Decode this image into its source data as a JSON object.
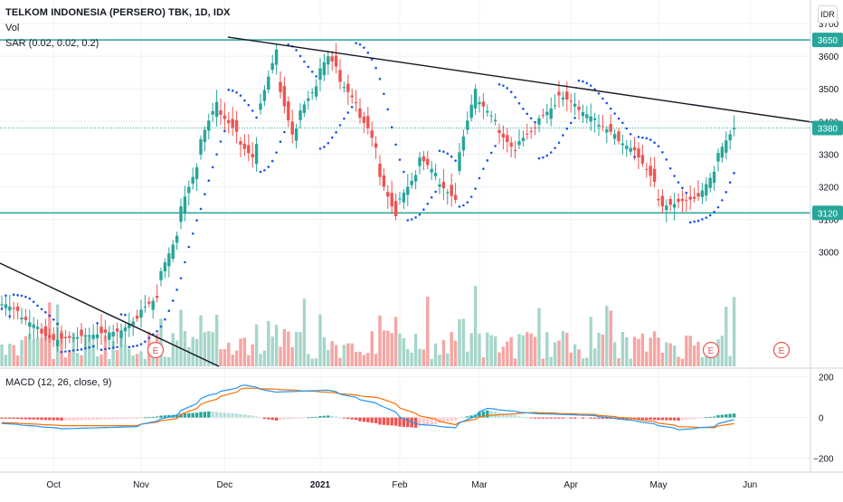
{
  "header": {
    "title": "TELKOM INDONESIA (PERSERO) TBK, 1D, IDX",
    "vol_label": "Vol",
    "sar_label": "SAR (0.02, 0.02, 0.2)",
    "macd_label": "MACD (12, 26, close, 9)",
    "currency": "IDR"
  },
  "colors": {
    "up": "#26a69a",
    "down": "#ef5350",
    "vol_up": "#a5d6c9",
    "vol_down": "#f5a5a3",
    "sar": "#1e53e5",
    "trendline": "#131722",
    "level": "#26a69a",
    "macd_line": "#2196f3",
    "signal_line": "#ff6d00",
    "earnings": "#ef5350"
  },
  "chart_data": [
    {
      "type": "candlestick",
      "title": "TELKOM INDONESIA (PERSERO) TBK, 1D, IDX",
      "x_tick_labels": [
        "Oct",
        "Nov",
        "Dec",
        "2021",
        "Feb",
        "Mar",
        "Apr",
        "May",
        "Jun"
      ],
      "y_tick_labels": [
        3000,
        3100,
        3200,
        3300,
        3400,
        3500,
        3600,
        3700
      ],
      "ylim": [
        2650,
        3750
      ],
      "price_labels": [
        3650,
        3380,
        3120
      ],
      "horizontal_levels": [
        3650,
        3120
      ],
      "last_close": 3380,
      "earnings_markers": [
        "E",
        "E",
        "E"
      ],
      "ohlc_anchors": [
        {
          "date": "2020-09-15",
          "open": 2880,
          "high": 2920,
          "low": 2790,
          "close": 2840
        },
        {
          "date": "2020-10-01",
          "open": 2790,
          "high": 2830,
          "low": 2700,
          "close": 2730
        },
        {
          "date": "2020-10-26",
          "open": 2720,
          "high": 2800,
          "low": 2650,
          "close": 2760
        },
        {
          "date": "2020-11-06",
          "open": 2800,
          "high": 2880,
          "low": 2760,
          "close": 2860
        },
        {
          "date": "2020-11-13",
          "open": 3020,
          "high": 3080,
          "low": 2990,
          "close": 3050
        },
        {
          "date": "2020-11-20",
          "open": 3200,
          "high": 3290,
          "low": 3180,
          "close": 3260
        },
        {
          "date": "2020-11-27",
          "open": 3420,
          "high": 3500,
          "low": 3380,
          "close": 3460
        },
        {
          "date": "2020-12-10",
          "open": 3300,
          "high": 3340,
          "low": 3250,
          "close": 3290
        },
        {
          "date": "2020-12-18",
          "open": 3520,
          "high": 3640,
          "low": 3490,
          "close": 3620
        },
        {
          "date": "2020-12-24",
          "open": 3450,
          "high": 3480,
          "low": 3320,
          "close": 3360
        },
        {
          "date": "2021-01-06",
          "open": 3540,
          "high": 3650,
          "low": 3500,
          "close": 3600
        },
        {
          "date": "2021-01-20",
          "open": 3420,
          "high": 3460,
          "low": 3360,
          "close": 3380
        },
        {
          "date": "2021-01-29",
          "open": 3200,
          "high": 3230,
          "low": 3030,
          "close": 3110
        },
        {
          "date": "2021-02-08",
          "open": 3270,
          "high": 3310,
          "low": 3230,
          "close": 3290
        },
        {
          "date": "2021-02-19",
          "open": 3150,
          "high": 3190,
          "low": 3120,
          "close": 3160
        },
        {
          "date": "2021-02-26",
          "open": 3190,
          "high": 3560,
          "low": 3180,
          "close": 3500
        },
        {
          "date": "2021-03-12",
          "open": 3380,
          "high": 3420,
          "low": 3280,
          "close": 3310
        },
        {
          "date": "2021-03-29",
          "open": 3400,
          "high": 3500,
          "low": 3380,
          "close": 3480
        },
        {
          "date": "2021-04-12",
          "open": 3400,
          "high": 3440,
          "low": 3370,
          "close": 3390
        },
        {
          "date": "2021-04-26",
          "open": 3300,
          "high": 3340,
          "low": 3270,
          "close": 3290
        },
        {
          "date": "2021-05-04",
          "open": 3160,
          "high": 3200,
          "low": 3120,
          "close": 3140
        },
        {
          "date": "2021-05-17",
          "open": 3160,
          "high": 3200,
          "low": 3130,
          "close": 3170
        },
        {
          "date": "2021-05-28",
          "open": 3340,
          "high": 3400,
          "low": 3330,
          "close": 3380
        }
      ]
    },
    {
      "type": "bar",
      "title": "Vol",
      "description_series": [
        "volume"
      ]
    },
    {
      "type": "line",
      "title": "MACD (12, 26, close, 9)",
      "y_tick_labels": [
        200,
        0,
        -200
      ],
      "ylim": [
        -260,
        230
      ],
      "macd_anchors": [
        {
          "date": "2020-09-15",
          "macd": -30,
          "signal": -25
        },
        {
          "date": "2020-10-05",
          "macd": -55,
          "signal": -40
        },
        {
          "date": "2020-10-30",
          "macd": -45,
          "signal": -40
        },
        {
          "date": "2020-11-13",
          "macd": 10,
          "signal": -5
        },
        {
          "date": "2020-11-25",
          "macd": 110,
          "signal": 80
        },
        {
          "date": "2020-12-08",
          "macd": 160,
          "signal": 145
        },
        {
          "date": "2020-12-18",
          "macd": 125,
          "signal": 140
        },
        {
          "date": "2021-01-06",
          "macd": 135,
          "signal": 125
        },
        {
          "date": "2021-01-25",
          "macd": 60,
          "signal": 95
        },
        {
          "date": "2021-02-05",
          "macd": -30,
          "signal": 20
        },
        {
          "date": "2021-02-19",
          "macd": -50,
          "signal": -35
        },
        {
          "date": "2021-03-03",
          "macd": 45,
          "signal": 10
        },
        {
          "date": "2021-03-19",
          "macd": 20,
          "signal": 25
        },
        {
          "date": "2021-04-09",
          "macd": 10,
          "signal": 15
        },
        {
          "date": "2021-04-26",
          "macd": -20,
          "signal": -10
        },
        {
          "date": "2021-05-10",
          "macd": -60,
          "signal": -45
        },
        {
          "date": "2021-05-21",
          "macd": -45,
          "signal": -50
        },
        {
          "date": "2021-05-28",
          "macd": -10,
          "signal": -30
        }
      ]
    }
  ]
}
